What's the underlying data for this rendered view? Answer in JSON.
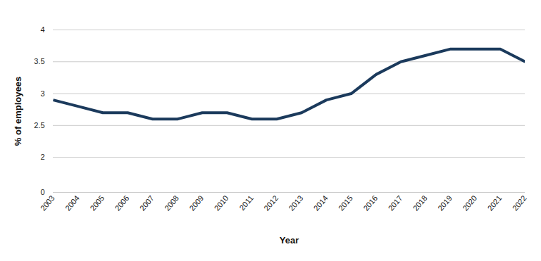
{
  "chart_data": {
    "type": "line",
    "x_label": "Year",
    "y_label": "% of employees",
    "x": [
      2003,
      2004,
      2005,
      2006,
      2007,
      2008,
      2009,
      2010,
      2011,
      2012,
      2013,
      2014,
      2015,
      2016,
      2017,
      2018,
      2019,
      2020,
      2021,
      2022
    ],
    "values": [
      2.9,
      2.8,
      2.7,
      2.7,
      2.6,
      2.6,
      2.7,
      2.7,
      2.6,
      2.6,
      2.7,
      2.9,
      3.0,
      3.3,
      3.5,
      3.6,
      3.7,
      3.7,
      3.7,
      3.5
    ],
    "color": "#1b3a5c",
    "xlim": [
      2003,
      2022
    ],
    "xticks": [
      2003,
      2004,
      2005,
      2006,
      2007,
      2008,
      2009,
      2010,
      2011,
      2012,
      2013,
      2014,
      2015,
      2016,
      2017,
      2018,
      2019,
      2020,
      2021,
      2022
    ],
    "ylim": [
      0,
      4
    ],
    "yticks": [
      0,
      2,
      2.5,
      3,
      3.5,
      4
    ],
    "grid": true
  }
}
